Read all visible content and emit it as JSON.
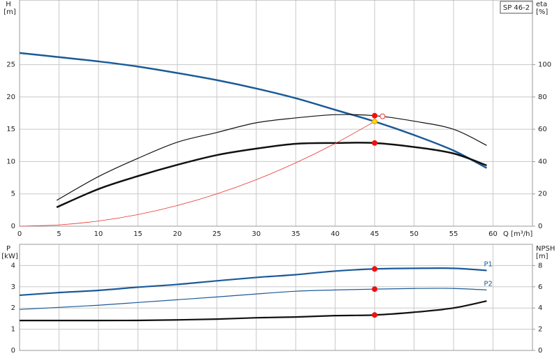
{
  "chart_data": [
    {
      "type": "line",
      "ylabel": "H",
      "yunit": "[m]",
      "y2label": "eta",
      "y2unit": "[%]",
      "xlabel": "Q [m³/h]",
      "annotation": "SP 46-2",
      "xlim": [
        0,
        65
      ],
      "xticks": [
        0,
        5,
        10,
        15,
        20,
        25,
        30,
        35,
        40,
        45,
        50,
        55,
        60
      ],
      "ylim": [
        0,
        35
      ],
      "yticks": [
        0,
        5,
        10,
        15,
        20,
        25
      ],
      "y2lim": [
        0,
        140
      ],
      "y2ticks": [
        0,
        20,
        40,
        60,
        80,
        100
      ],
      "grid": true,
      "series": [
        {
          "color": "#1b5a98",
          "width": 2.5,
          "style": "line",
          "x": [
            0,
            4.7,
            10,
            15,
            20,
            25,
            30,
            35,
            40,
            45,
            50,
            55,
            59.2
          ],
          "values": [
            26.8,
            26.2,
            25.5,
            24.7,
            23.7,
            22.6,
            21.3,
            19.8,
            18.0,
            16.2,
            14.1,
            11.7,
            9.0
          ]
        },
        {
          "color": "#111111",
          "width": 1.2,
          "style": "line",
          "axis": "y2",
          "x": [
            4.7,
            10,
            15,
            20,
            25,
            30,
            35,
            40,
            45,
            50,
            55,
            59.2
          ],
          "values": [
            16,
            30.7,
            42,
            52,
            58,
            64,
            67,
            69,
            68.4,
            65,
            60,
            50
          ]
        },
        {
          "color": "#111111",
          "width": 2.5,
          "style": "line",
          "axis": "y2",
          "x": [
            4.7,
            10,
            15,
            20,
            25,
            30,
            35,
            40,
            45,
            50,
            55,
            59.2
          ],
          "values": [
            11.7,
            23,
            31,
            38,
            44,
            48,
            51,
            51.5,
            51.5,
            49,
            45,
            37.6
          ]
        },
        {
          "color": "#e8332e",
          "width": 0.8,
          "style": "line",
          "x": [
            0,
            5,
            10,
            15,
            20,
            25,
            30,
            35,
            40,
            45
          ],
          "values": [
            0,
            0.2,
            0.8,
            1.8,
            3.2,
            5.0,
            7.2,
            9.8,
            12.8,
            16.2
          ]
        },
        {
          "color": "#ee1111",
          "style": "dot",
          "axis": "y2",
          "x": [
            45,
            45
          ],
          "values": [
            68.4,
            51.5
          ]
        },
        {
          "color": "#ffd700",
          "style": "dot",
          "x": [
            45
          ],
          "values": [
            16.2
          ]
        },
        {
          "color": "#e8332e",
          "style": "open-dot",
          "axis": "y2",
          "x": [
            46
          ],
          "values": [
            68
          ]
        }
      ]
    },
    {
      "type": "line",
      "ylabel": "P",
      "yunit": "[kW]",
      "y2label": "NPSH",
      "y2unit": "[m]",
      "xlim": [
        0,
        65
      ],
      "ylim": [
        0,
        5
      ],
      "yticks": [
        0,
        1,
        2,
        3,
        4
      ],
      "y2lim": [
        0,
        10
      ],
      "y2ticks": [
        0,
        2,
        4,
        6,
        8
      ],
      "grid": true,
      "series": [
        {
          "name": "P1",
          "color": "#1b5a98",
          "width": 2.2,
          "style": "line",
          "x": [
            0,
            4.7,
            10,
            15,
            20,
            25,
            30,
            35,
            40,
            45,
            50,
            55,
            59.2
          ],
          "values": [
            2.6,
            2.72,
            2.83,
            2.98,
            3.11,
            3.28,
            3.44,
            3.57,
            3.74,
            3.84,
            3.87,
            3.87,
            3.77
          ]
        },
        {
          "name": "P2",
          "color": "#1b5a98",
          "width": 1.2,
          "style": "line",
          "x": [
            0,
            5,
            10,
            15,
            20,
            25,
            30,
            35,
            40,
            45,
            50,
            55,
            59.2
          ],
          "values": [
            1.93,
            2.03,
            2.13,
            2.26,
            2.39,
            2.52,
            2.66,
            2.79,
            2.85,
            2.89,
            2.92,
            2.92,
            2.85
          ]
        },
        {
          "color": "#111111",
          "width": 2.2,
          "style": "line",
          "axis": "y2",
          "x": [
            0,
            4.7,
            10,
            15,
            20,
            25,
            30,
            35,
            40,
            45,
            50,
            55,
            59.2
          ],
          "values": [
            2.82,
            2.82,
            2.82,
            2.83,
            2.88,
            2.95,
            3.08,
            3.15,
            3.28,
            3.34,
            3.6,
            4.0,
            4.66
          ]
        },
        {
          "color": "#ee1111",
          "style": "dot",
          "x": [
            45,
            45
          ],
          "values": [
            3.84,
            2.89
          ]
        },
        {
          "color": "#ee1111",
          "style": "dot",
          "axis": "y2",
          "x": [
            45
          ],
          "values": [
            3.34
          ]
        }
      ]
    }
  ]
}
